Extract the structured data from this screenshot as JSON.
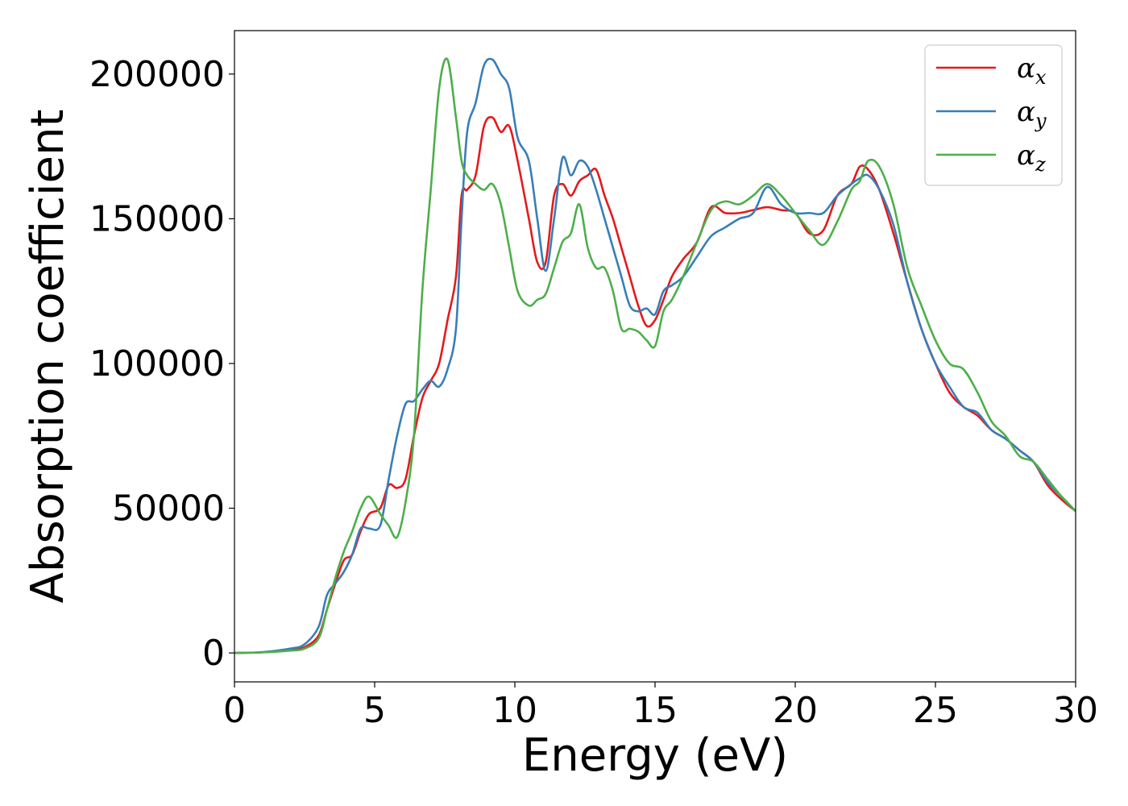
{
  "chart_data": {
    "type": "line",
    "xlabel": "Energy (eV)",
    "ylabel": "Absorption coefficient",
    "xlim": [
      0,
      30
    ],
    "ylim": [
      -10000,
      215000
    ],
    "xticks": [
      0,
      5,
      10,
      15,
      20,
      25,
      30
    ],
    "xtick_labels": [
      "0",
      "5",
      "10",
      "15",
      "20",
      "25",
      "30"
    ],
    "yticks": [
      0,
      50000,
      100000,
      150000,
      200000
    ],
    "ytick_labels": [
      "0",
      "50000",
      "100000",
      "150000",
      "200000"
    ],
    "grid": false,
    "legend_position": "top-right",
    "series": [
      {
        "name": "α",
        "subscript": "x",
        "color": "#e41a1c",
        "x": [
          0,
          1,
          2,
          2.5,
          3,
          3.3,
          3.6,
          3.9,
          4.2,
          4.5,
          4.8,
          5.2,
          5.5,
          5.8,
          6.1,
          6.4,
          6.7,
          7.0,
          7.3,
          7.6,
          7.9,
          8.1,
          8.3,
          8.6,
          8.9,
          9.2,
          9.5,
          9.8,
          10.1,
          10.5,
          10.8,
          11.1,
          11.4,
          11.7,
          12.0,
          12.3,
          12.6,
          12.9,
          13.2,
          13.5,
          13.8,
          14.1,
          14.4,
          14.7,
          15.0,
          15.3,
          15.6,
          16.0,
          16.5,
          17.0,
          17.5,
          18.0,
          18.5,
          19.0,
          19.5,
          20.0,
          20.5,
          21.0,
          21.5,
          22.0,
          22.3,
          22.6,
          23.0,
          23.5,
          24.0,
          24.5,
          25.0,
          25.5,
          26.0,
          26.5,
          27.0,
          27.5,
          28.0,
          28.5,
          29.0,
          29.5,
          30.0
        ],
        "y": [
          0,
          200,
          1000,
          2000,
          6000,
          15000,
          24000,
          32000,
          34000,
          42000,
          48000,
          50000,
          58000,
          57000,
          60000,
          75000,
          88000,
          94000,
          100000,
          115000,
          130000,
          158000,
          160000,
          165000,
          182000,
          185000,
          180000,
          182000,
          170000,
          150000,
          135000,
          135000,
          158000,
          162000,
          158000,
          163000,
          165000,
          167000,
          158000,
          150000,
          140000,
          130000,
          120000,
          113000,
          115000,
          122000,
          130000,
          136000,
          142000,
          154000,
          152000,
          152000,
          153000,
          154000,
          153000,
          152000,
          145000,
          146000,
          158000,
          162000,
          168000,
          167000,
          160000,
          145000,
          128000,
          112000,
          100000,
          90000,
          85000,
          82000,
          77000,
          74000,
          70000,
          66000,
          58000,
          53000,
          49000
        ]
      },
      {
        "name": "α",
        "subscript": "y",
        "color": "#377eb8",
        "x": [
          0,
          1,
          2,
          2.5,
          3,
          3.3,
          3.6,
          3.9,
          4.2,
          4.5,
          4.8,
          5.2,
          5.5,
          5.8,
          6.1,
          6.4,
          6.7,
          7.0,
          7.3,
          7.6,
          7.9,
          8.1,
          8.3,
          8.6,
          8.9,
          9.2,
          9.5,
          9.8,
          10.1,
          10.5,
          10.8,
          11.1,
          11.4,
          11.7,
          12.0,
          12.3,
          12.6,
          12.9,
          13.2,
          13.5,
          13.8,
          14.1,
          14.4,
          14.7,
          15.0,
          15.3,
          15.6,
          16.0,
          16.5,
          17.0,
          17.5,
          18.0,
          18.5,
          19.0,
          19.5,
          20.0,
          20.5,
          21.0,
          21.5,
          22.0,
          22.3,
          22.6,
          23.0,
          23.5,
          24.0,
          24.5,
          25.0,
          25.5,
          26.0,
          26.5,
          27.0,
          27.5,
          28.0,
          28.5,
          29.0,
          29.5,
          30.0
        ],
        "y": [
          0,
          300,
          1500,
          3000,
          9000,
          20000,
          24000,
          28000,
          34000,
          43000,
          43000,
          44000,
          60000,
          75000,
          86000,
          87000,
          91000,
          94000,
          92000,
          98000,
          112000,
          150000,
          180000,
          190000,
          203000,
          205000,
          200000,
          195000,
          178000,
          170000,
          150000,
          132000,
          150000,
          171000,
          165000,
          170000,
          168000,
          160000,
          150000,
          140000,
          130000,
          120000,
          118000,
          119000,
          117000,
          125000,
          127000,
          130000,
          137000,
          144000,
          147000,
          150000,
          152000,
          161000,
          155000,
          152000,
          152000,
          152000,
          158000,
          162000,
          164000,
          165000,
          160000,
          148000,
          128000,
          112000,
          100000,
          92000,
          85000,
          83000,
          77000,
          74000,
          70000,
          66000,
          59000,
          54000,
          49000
        ]
      },
      {
        "name": "α",
        "subscript": "z",
        "color": "#4daf4a",
        "x": [
          0,
          1,
          2,
          2.5,
          3,
          3.3,
          3.6,
          3.9,
          4.2,
          4.5,
          4.8,
          5.2,
          5.5,
          5.8,
          6.1,
          6.4,
          6.7,
          7.0,
          7.3,
          7.6,
          7.9,
          8.1,
          8.3,
          8.6,
          8.9,
          9.2,
          9.5,
          9.8,
          10.1,
          10.5,
          10.8,
          11.1,
          11.4,
          11.7,
          12.0,
          12.3,
          12.6,
          12.9,
          13.2,
          13.5,
          13.8,
          14.1,
          14.4,
          14.7,
          15.0,
          15.3,
          15.6,
          16.0,
          16.5,
          17.0,
          17.5,
          18.0,
          18.5,
          19.0,
          19.5,
          20.0,
          20.5,
          21.0,
          21.5,
          22.0,
          22.3,
          22.6,
          23.0,
          23.5,
          24.0,
          24.5,
          25.0,
          25.5,
          26.0,
          26.5,
          27.0,
          27.5,
          28.0,
          28.5,
          29.0,
          29.5,
          30.0
        ],
        "y": [
          0,
          200,
          800,
          1500,
          5000,
          15000,
          26000,
          35000,
          42000,
          50000,
          54000,
          48000,
          44000,
          40000,
          52000,
          75000,
          125000,
          160000,
          195000,
          205000,
          185000,
          170000,
          165000,
          162000,
          160000,
          162000,
          155000,
          140000,
          125000,
          120000,
          122000,
          124000,
          133000,
          142000,
          145000,
          155000,
          140000,
          133000,
          133000,
          125000,
          112000,
          112000,
          111000,
          108000,
          106000,
          118000,
          122000,
          130000,
          142000,
          153000,
          156000,
          155000,
          158000,
          162000,
          158000,
          152000,
          146000,
          141000,
          149000,
          160000,
          163000,
          170000,
          168000,
          155000,
          133000,
          120000,
          108000,
          100000,
          98000,
          90000,
          80000,
          75000,
          68000,
          66000,
          60000,
          54000,
          49000
        ]
      }
    ]
  }
}
